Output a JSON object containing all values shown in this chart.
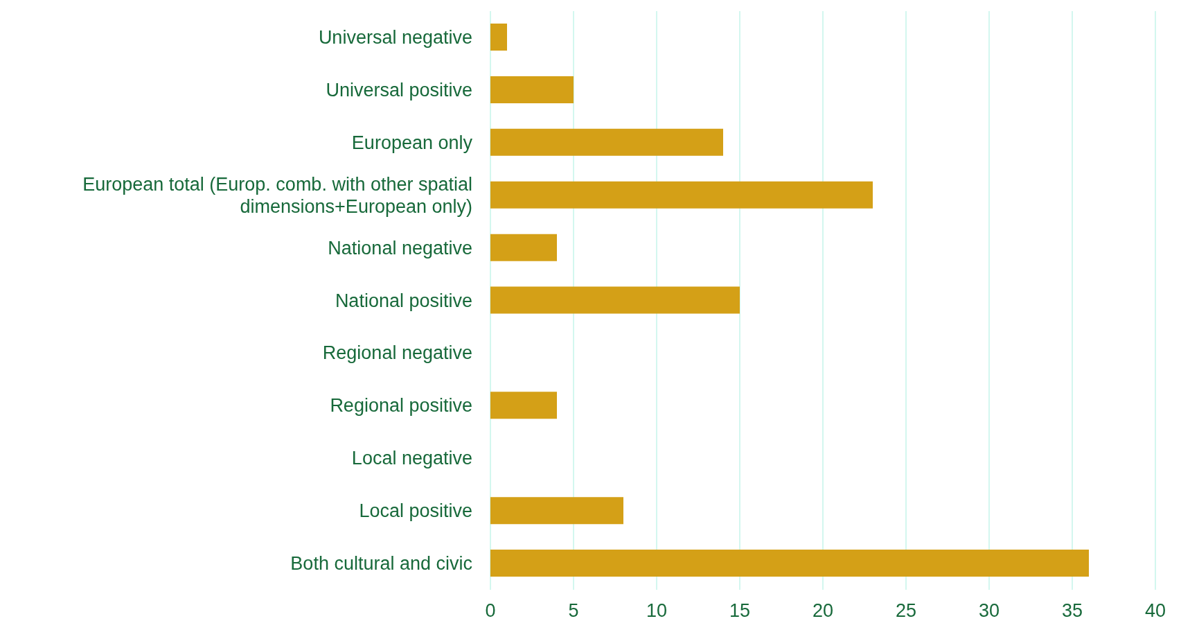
{
  "chart_data": {
    "type": "bar",
    "orientation": "horizontal",
    "categories": [
      "Universal negative",
      "Universal positive",
      "European only",
      "European total (Europ. comb. with other spatial dimensions+European only)",
      "National negative",
      "National positive",
      "Regional negative",
      "Regional positive",
      "Local negative",
      "Local positive",
      "Both cultural and civic"
    ],
    "values": [
      1,
      5,
      14,
      23,
      4,
      15,
      0,
      4,
      0,
      8,
      36
    ],
    "color": "#d4a017",
    "xlim": [
      0,
      40
    ],
    "xticks": [
      0,
      5,
      10,
      15,
      20,
      25,
      30,
      35,
      40
    ],
    "grid": "x"
  }
}
